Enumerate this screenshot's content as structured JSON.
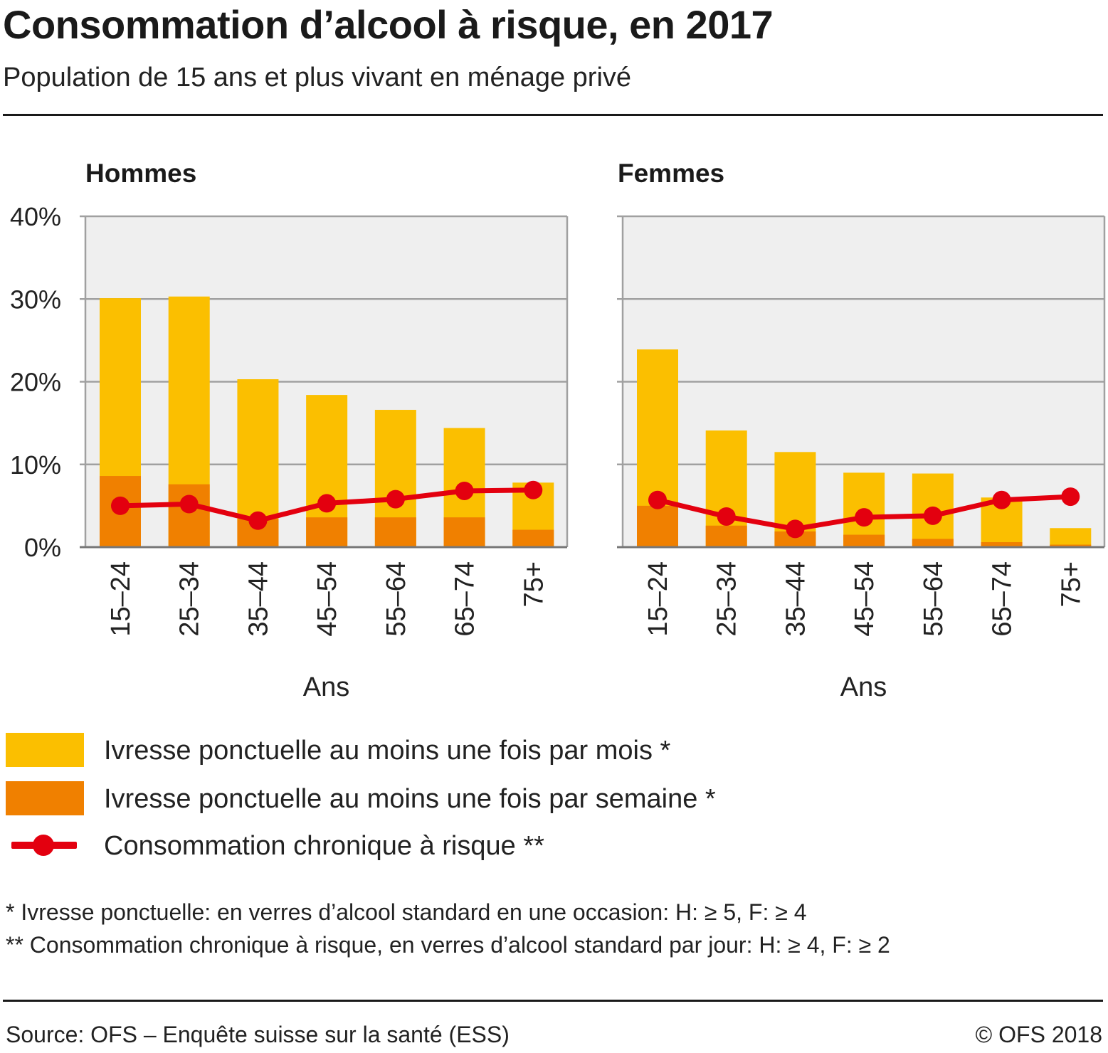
{
  "header": {
    "title": "Consommation d’alcool à risque, en 2017",
    "subtitle": "Population de 15 ans et plus vivant en ménage privé"
  },
  "chart_data": {
    "type": "bar",
    "stacked_overlay": true,
    "ylim": [
      0,
      40
    ],
    "yticks": [
      "0%",
      "10%",
      "20%",
      "30%",
      "40%"
    ],
    "ytick_values": [
      0,
      10,
      20,
      30,
      40
    ],
    "grid": true,
    "categories": [
      "15–24",
      "25–34",
      "35–44",
      "45–54",
      "55–64",
      "65–74",
      "75+"
    ],
    "xlabel": "Ans",
    "colors": {
      "monthly": "#fbbf00",
      "weekly": "#f08000",
      "chronic": "#e3000f",
      "plot_bg": "#efefef",
      "grid": "#a0a0a0"
    },
    "panels": [
      {
        "title": "Hommes",
        "series": [
          {
            "name": "Ivresse ponctuelle au moins une fois par mois *",
            "type": "bar",
            "values": [
              30.1,
              30.3,
              20.3,
              18.4,
              16.6,
              14.4,
              7.8
            ]
          },
          {
            "name": "Ivresse ponctuelle au moins une fois par semaine *",
            "type": "bar",
            "values": [
              8.6,
              7.6,
              3.4,
              3.6,
              3.6,
              3.6,
              2.1
            ]
          },
          {
            "name": "Consommation chronique à risque **",
            "type": "line",
            "values": [
              5.0,
              5.2,
              3.2,
              5.3,
              5.8,
              6.8,
              6.9
            ]
          }
        ]
      },
      {
        "title": "Femmes",
        "series": [
          {
            "name": "Ivresse ponctuelle au moins une fois par mois *",
            "type": "bar",
            "values": [
              23.9,
              14.1,
              11.5,
              9.0,
              8.9,
              6.0,
              2.3
            ]
          },
          {
            "name": "Ivresse ponctuelle au moins une fois par semaine *",
            "type": "bar",
            "values": [
              5.0,
              2.6,
              1.9,
              1.5,
              1.0,
              0.6,
              0.3
            ]
          },
          {
            "name": "Consommation chronique à risque **",
            "type": "line",
            "values": [
              5.7,
              3.7,
              2.2,
              3.6,
              3.8,
              5.7,
              6.1
            ]
          }
        ]
      }
    ]
  },
  "legend": {
    "items": [
      {
        "label": "Ivresse ponctuelle au moins une fois par mois *",
        "color": "#fbbf00",
        "icon": "swatch"
      },
      {
        "label": "Ivresse ponctuelle au moins une fois par semaine *",
        "color": "#f08000",
        "icon": "swatch"
      },
      {
        "label": "Consommation chronique à risque **",
        "color": "#e3000f",
        "icon": "line-dot"
      }
    ]
  },
  "notes": [
    "* Ivresse ponctuelle: en verres d’alcool standard en une occasion: H: ≥ 5, F: ≥ 4",
    "** Consommation chronique à risque, en verres d’alcool standard par jour: H: ≥ 4, F: ≥ 2"
  ],
  "footer": {
    "source": "Source: OFS – Enquête suisse sur la santé (ESS)",
    "copyright": "© OFS 2018"
  }
}
